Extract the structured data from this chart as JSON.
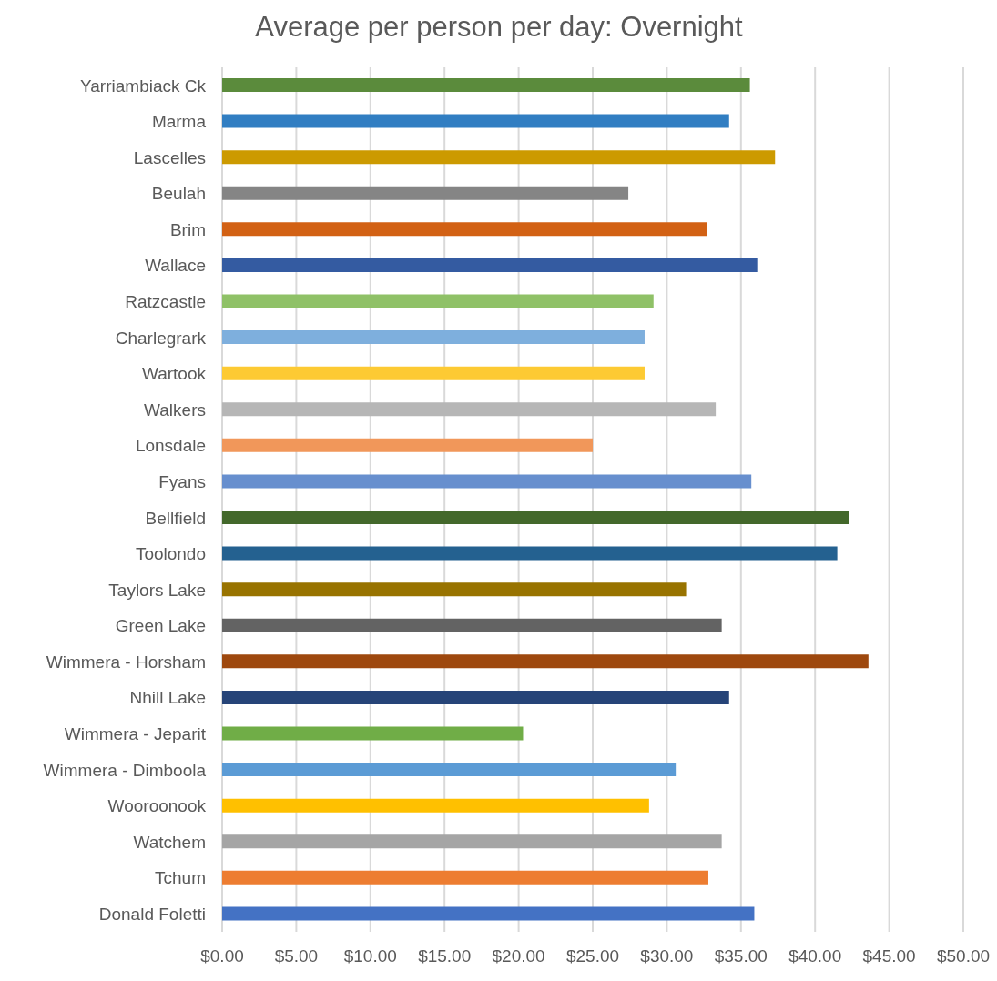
{
  "chart_data": {
    "type": "bar",
    "orientation": "horizontal",
    "title": "Average per person per day: Overnight",
    "categories": [
      "Yarriambiack Ck",
      "Marma",
      "Lascelles",
      "Beulah",
      "Brim",
      "Wallace",
      "Ratzcastle",
      "Charlegrark",
      "Wartook",
      "Walkers",
      "Lonsdale",
      "Fyans",
      "Bellfield",
      "Toolondo",
      "Taylors Lake",
      "Green Lake",
      "Wimmera - Horsham",
      "Nhill Lake",
      "Wimmera - Jeparit",
      "Wimmera - Dimboola",
      "Wooroonook",
      "Watchem",
      "Tchum",
      "Donald Foletti"
    ],
    "values": [
      35.6,
      34.2,
      37.3,
      27.4,
      32.7,
      36.1,
      29.1,
      28.5,
      28.5,
      33.3,
      25.0,
      35.7,
      42.3,
      41.5,
      31.3,
      33.7,
      43.6,
      34.2,
      20.3,
      30.6,
      28.8,
      33.7,
      32.8,
      35.9
    ],
    "colors": [
      "#5b8b3c",
      "#317ec2",
      "#cc9a00",
      "#858585",
      "#d26114",
      "#345ba1",
      "#8fc167",
      "#7eafdd",
      "#fdca33",
      "#b6b6b6",
      "#f1975a",
      "#678fce",
      "#43682b",
      "#246190",
      "#987300",
      "#636363",
      "#9e480e",
      "#264478",
      "#70ad47",
      "#5b9bd5",
      "#ffc000",
      "#a5a5a5",
      "#ed7d31",
      "#4472c4"
    ],
    "xlim": [
      0,
      50
    ],
    "xticks": [
      {
        "value": 0,
        "label": "$0.00"
      },
      {
        "value": 5,
        "label": "$5.00"
      },
      {
        "value": 10,
        "label": "$10.00"
      },
      {
        "value": 15,
        "label": "$15.00"
      },
      {
        "value": 20,
        "label": "$20.00"
      },
      {
        "value": 25,
        "label": "$25.00"
      },
      {
        "value": 30,
        "label": "$30.00"
      },
      {
        "value": 35,
        "label": "$35.00"
      },
      {
        "value": 40,
        "label": "$40.00"
      },
      {
        "value": 45,
        "label": "$45.00"
      },
      {
        "value": 50,
        "label": "$50.00"
      }
    ],
    "grid": "x",
    "legend": false
  }
}
